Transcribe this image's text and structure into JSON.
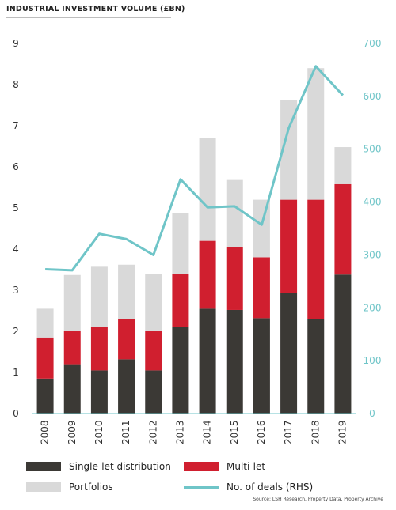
{
  "title": "INDUSTRIAL INVESTMENT VOLUME (£BN)",
  "source": "Source: LSH Research, Property Data, Property Archive",
  "chart_data": {
    "type": "bar",
    "stacked": true,
    "title": "INDUSTRIAL INVESTMENT VOLUME (£BN)",
    "categories": [
      "2008",
      "2009",
      "2010",
      "2011",
      "2012",
      "2013",
      "2014",
      "2015",
      "2016",
      "2017",
      "2018",
      "2019"
    ],
    "series": [
      {
        "name": "Single-let distribution",
        "color": "#3b3935",
        "axis": "left",
        "values": [
          0.85,
          1.2,
          1.05,
          1.32,
          1.05,
          2.1,
          2.55,
          2.52,
          2.32,
          2.93,
          2.3,
          3.38
        ]
      },
      {
        "name": "Multi-let",
        "color": "#d01f2f",
        "axis": "left",
        "values": [
          1.0,
          0.8,
          1.05,
          0.98,
          0.97,
          1.3,
          1.65,
          1.53,
          1.48,
          2.27,
          2.9,
          2.2
        ]
      },
      {
        "name": "Portfolios",
        "color": "#d9d9d9",
        "axis": "left",
        "values": [
          0.7,
          1.37,
          1.47,
          1.32,
          1.38,
          1.48,
          2.5,
          1.63,
          1.4,
          2.43,
          3.2,
          0.9
        ]
      },
      {
        "name": "No. of deals (RHS)",
        "type": "line",
        "color": "#6fc5c8",
        "axis": "right",
        "values": [
          273,
          271,
          340,
          330,
          300,
          443,
          390,
          392,
          357,
          540,
          657,
          602
        ]
      }
    ],
    "y_left": {
      "min": 0,
      "max": 9,
      "ticks": [
        0,
        1,
        2,
        3,
        4,
        5,
        6,
        7,
        8,
        9
      ]
    },
    "y_right": {
      "min": 0,
      "max": 700,
      "ticks": [
        0,
        100,
        200,
        300,
        400,
        500,
        600,
        700
      ]
    },
    "grid": false,
    "legend_position": "bottom"
  },
  "colors": {
    "left_axis_text": "#333333",
    "right_axis_text": "#6fc5c8",
    "baseline": "#6fc5c8"
  }
}
